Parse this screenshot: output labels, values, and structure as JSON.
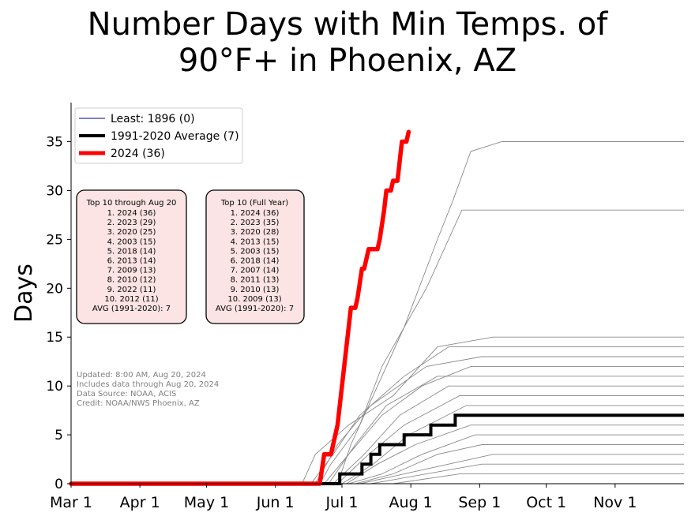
{
  "chart_data": {
    "type": "line",
    "title_line1": "Number Days with Min Temps. of",
    "title_line2": "90°F+ in Phoenix, AZ",
    "ylabel": "Days",
    "ylim": [
      0,
      39
    ],
    "xlim_doy": [
      0,
      276
    ],
    "yticks": [
      0,
      5,
      10,
      15,
      20,
      25,
      30,
      35
    ],
    "xticks": [
      {
        "label": "Mar 1",
        "doy": 0
      },
      {
        "label": "Apr 1",
        "doy": 31
      },
      {
        "label": "May 1",
        "doy": 61
      },
      {
        "label": "Jun 1",
        "doy": 92
      },
      {
        "label": "Jul 1",
        "doy": 122
      },
      {
        "label": "Aug 1",
        "doy": 153
      },
      {
        "label": "Sep 1",
        "doy": 184
      },
      {
        "label": "Oct 1",
        "doy": 214
      },
      {
        "label": "Nov 1",
        "doy": 245
      }
    ],
    "legend": [
      {
        "label": "Least: 1896 (0)",
        "color": "#00008b",
        "width": 1
      },
      {
        "label": "1991-2020 Average (7)",
        "color": "#000000",
        "width": 4
      },
      {
        "label": "2024 (36)",
        "color": "#ff0000",
        "width": 5
      }
    ],
    "top10_ytd": {
      "title": "Top 10 through Aug 20",
      "lines": [
        "1. 2024 (36)",
        "2. 2023 (29)",
        "3. 2020 (25)",
        "4. 2003 (15)",
        "5. 2018 (14)",
        "6. 2013 (14)",
        "7. 2009 (13)",
        "8. 2010 (12)",
        "9. 2022 (11)",
        "10. 2012 (11)"
      ],
      "avg": "AVG (1991-2020): 7"
    },
    "top10_full": {
      "title": "Top 10 (Full Year)",
      "lines": [
        "1. 2024 (36)",
        "2. 2023 (35)",
        "3. 2020 (28)",
        "4. 2013 (15)",
        "5. 2003 (15)",
        "6. 2018 (14)",
        "7. 2007 (14)",
        "8. 2011 (13)",
        "9. 2010 (13)",
        "10. 2009 (13)"
      ],
      "avg": "AVG (1991-2020): 7"
    },
    "notes": [
      "Updated: 8:00 AM, Aug 20, 2024",
      "Includes data through Aug 20, 2024",
      "Data Source: NOAA, ACIS",
      "Credit: NOAA/NWS Phoenix, AZ"
    ],
    "series_2024": {
      "name": "2024 (36)",
      "color": "#ff0000",
      "points": [
        [
          0,
          0
        ],
        [
          112,
          0
        ],
        [
          114,
          3
        ],
        [
          117,
          3
        ],
        [
          118,
          4
        ],
        [
          119,
          5
        ],
        [
          120,
          6
        ],
        [
          123,
          12
        ],
        [
          126,
          18
        ],
        [
          128,
          18
        ],
        [
          129,
          19
        ],
        [
          131,
          22
        ],
        [
          132,
          22
        ],
        [
          134,
          24
        ],
        [
          138,
          24
        ],
        [
          139,
          25
        ],
        [
          141,
          28
        ],
        [
          142,
          30
        ],
        [
          144,
          30
        ],
        [
          145,
          31
        ],
        [
          147,
          31
        ],
        [
          148,
          33
        ],
        [
          149,
          35
        ],
        [
          151,
          35
        ],
        [
          152,
          36
        ]
      ]
    },
    "series_average": {
      "name": "1991-2020 Average (7)",
      "color": "#000000",
      "points": [
        [
          0,
          0
        ],
        [
          121,
          0
        ],
        [
          121,
          1
        ],
        [
          131,
          1
        ],
        [
          131,
          2
        ],
        [
          135,
          2
        ],
        [
          135,
          3
        ],
        [
          139,
          3
        ],
        [
          139,
          4
        ],
        [
          150,
          4
        ],
        [
          150,
          5
        ],
        [
          162,
          5
        ],
        [
          162,
          6
        ],
        [
          173,
          6
        ],
        [
          173,
          7
        ],
        [
          276,
          7
        ]
      ]
    },
    "historical_series": [
      {
        "points": [
          [
            0,
            0
          ],
          [
            112,
            0
          ],
          [
            117,
            2
          ],
          [
            130,
            6
          ],
          [
            140,
            12
          ],
          [
            160,
            20
          ],
          [
            176,
            28
          ],
          [
            276,
            28
          ]
        ]
      },
      {
        "points": [
          [
            0,
            0
          ],
          [
            120,
            0
          ],
          [
            126,
            4
          ],
          [
            138,
            10
          ],
          [
            150,
            16
          ],
          [
            165,
            25
          ],
          [
            172,
            29
          ],
          [
            180,
            34
          ],
          [
            194,
            35
          ],
          [
            276,
            35
          ]
        ]
      },
      {
        "points": [
          [
            0,
            0
          ],
          [
            104,
            0
          ],
          [
            110,
            3
          ],
          [
            125,
            6
          ],
          [
            145,
            9
          ],
          [
            165,
            14
          ],
          [
            190,
            15
          ],
          [
            276,
            15
          ]
        ]
      },
      {
        "points": [
          [
            0,
            0
          ],
          [
            108,
            0
          ],
          [
            118,
            3
          ],
          [
            130,
            7
          ],
          [
            150,
            11
          ],
          [
            170,
            14
          ],
          [
            200,
            14
          ],
          [
            276,
            14
          ]
        ]
      },
      {
        "points": [
          [
            0,
            0
          ],
          [
            110,
            0
          ],
          [
            120,
            4
          ],
          [
            135,
            8
          ],
          [
            160,
            12
          ],
          [
            185,
            13
          ],
          [
            276,
            13
          ]
        ]
      },
      {
        "points": [
          [
            0,
            0
          ],
          [
            114,
            0
          ],
          [
            125,
            3
          ],
          [
            140,
            7
          ],
          [
            158,
            10
          ],
          [
            180,
            12
          ],
          [
            276,
            12
          ]
        ]
      },
      {
        "points": [
          [
            0,
            0
          ],
          [
            116,
            0
          ],
          [
            128,
            4
          ],
          [
            142,
            8
          ],
          [
            165,
            11
          ],
          [
            276,
            11
          ]
        ]
      },
      {
        "points": [
          [
            0,
            0
          ],
          [
            118,
            0
          ],
          [
            132,
            3
          ],
          [
            148,
            7
          ],
          [
            170,
            10
          ],
          [
            276,
            10
          ]
        ]
      },
      {
        "points": [
          [
            0,
            0
          ],
          [
            120,
            0
          ],
          [
            134,
            3
          ],
          [
            150,
            6
          ],
          [
            175,
            9
          ],
          [
            276,
            9
          ]
        ]
      },
      {
        "points": [
          [
            0,
            0
          ],
          [
            122,
            0
          ],
          [
            136,
            2
          ],
          [
            152,
            5
          ],
          [
            178,
            8
          ],
          [
            276,
            8
          ]
        ]
      },
      {
        "points": [
          [
            0,
            0
          ],
          [
            124,
            0
          ],
          [
            138,
            2
          ],
          [
            155,
            4
          ],
          [
            180,
            6
          ],
          [
            276,
            6
          ]
        ]
      },
      {
        "points": [
          [
            0,
            0
          ],
          [
            125,
            0
          ],
          [
            140,
            1
          ],
          [
            158,
            3
          ],
          [
            182,
            5
          ],
          [
            276,
            5
          ]
        ]
      },
      {
        "points": [
          [
            0,
            0
          ],
          [
            128,
            0
          ],
          [
            145,
            1
          ],
          [
            165,
            3
          ],
          [
            185,
            4
          ],
          [
            276,
            4
          ]
        ]
      },
      {
        "points": [
          [
            0,
            0
          ],
          [
            130,
            0
          ],
          [
            150,
            1
          ],
          [
            170,
            2
          ],
          [
            190,
            3
          ],
          [
            276,
            3
          ]
        ]
      },
      {
        "points": [
          [
            0,
            0
          ],
          [
            135,
            0
          ],
          [
            160,
            1
          ],
          [
            185,
            2
          ],
          [
            276,
            2
          ]
        ]
      },
      {
        "points": [
          [
            0,
            0
          ],
          [
            145,
            0
          ],
          [
            175,
            1
          ],
          [
            276,
            1
          ]
        ]
      },
      {
        "points": [
          [
            0,
            0
          ],
          [
            276,
            0
          ]
        ]
      }
    ]
  }
}
